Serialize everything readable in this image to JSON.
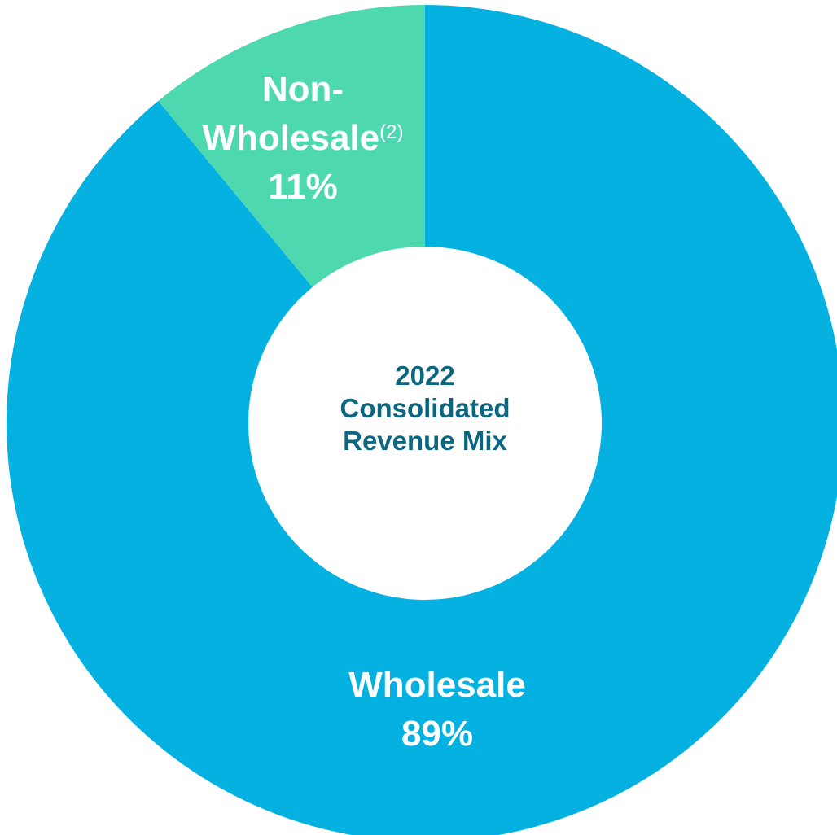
{
  "chart_data": {
    "type": "donut",
    "title": "2022 Consolidated Revenue Mix",
    "categories": [
      "Wholesale",
      "Non-Wholesale"
    ],
    "values": [
      89,
      11
    ],
    "value_labels": [
      "89%",
      "11%"
    ],
    "colors": [
      "#05b1e0",
      "#4dd8b0"
    ],
    "annotation": "(2)"
  }
}
